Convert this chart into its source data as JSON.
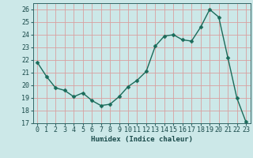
{
  "x": [
    0,
    1,
    2,
    3,
    4,
    5,
    6,
    7,
    8,
    9,
    10,
    11,
    12,
    13,
    14,
    15,
    16,
    17,
    18,
    19,
    20,
    21,
    22,
    23
  ],
  "y": [
    21.8,
    20.7,
    19.8,
    19.6,
    19.1,
    19.4,
    18.8,
    18.4,
    18.5,
    19.1,
    19.9,
    20.4,
    21.1,
    23.1,
    23.9,
    24.0,
    23.6,
    23.5,
    24.6,
    26.0,
    25.4,
    22.2,
    19.0,
    17.1
  ],
  "bg_color": "#cce8e8",
  "line_color": "#1a6b5a",
  "marker_color": "#1a6b5a",
  "grid_color": "#e8a0a0",
  "xlabel": "Humidex (Indice chaleur)",
  "ylim": [
    17,
    26.5
  ],
  "yticks": [
    17,
    18,
    19,
    20,
    21,
    22,
    23,
    24,
    25,
    26
  ],
  "xticks": [
    0,
    1,
    2,
    3,
    4,
    5,
    6,
    7,
    8,
    9,
    10,
    11,
    12,
    13,
    14,
    15,
    16,
    17,
    18,
    19,
    20,
    21,
    22,
    23
  ],
  "xlabel_fontsize": 6.5,
  "tick_fontsize": 6.0,
  "line_width": 1.0,
  "marker_size": 2.5
}
